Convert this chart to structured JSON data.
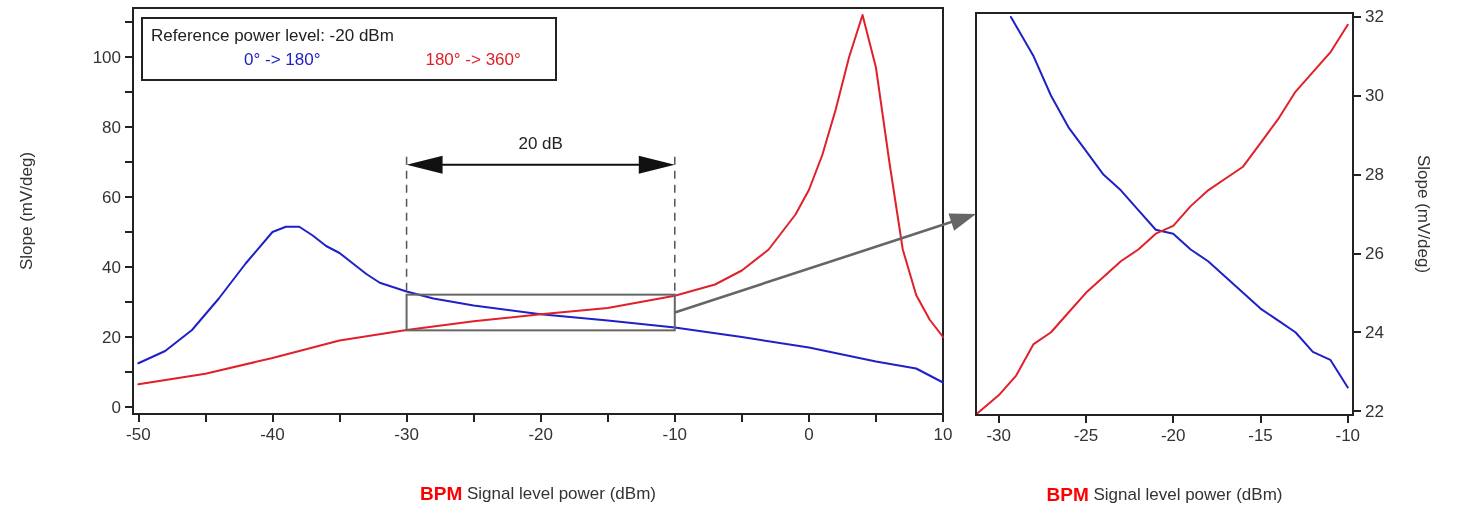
{
  "chart_data": [
    {
      "type": "line",
      "xlabel": "BPM Signal level power (dBm)",
      "ylabel": "Slope (mV/deg)",
      "legend_title": "Reference power level: -20 dBm",
      "legend": "top left",
      "grid": false,
      "xlim": [
        -50.4,
        10
      ],
      "xticks": [
        -50,
        {
          "value": -45,
          "label": null
        },
        -40,
        {
          "value": -35,
          "label": null
        },
        -30,
        {
          "value": -25,
          "label": null
        },
        -20,
        {
          "value": -15,
          "label": null
        },
        -10,
        {
          "value": -5,
          "label": null
        },
        0,
        {
          "value": 5,
          "label": null
        },
        10
      ],
      "ylim": [
        -2,
        114
      ],
      "yticks": [
        0,
        {
          "value": 10,
          "label": null
        },
        20,
        {
          "value": 30,
          "label": null
        },
        40,
        {
          "value": 50,
          "label": null
        },
        60,
        {
          "value": 70,
          "label": null
        },
        80,
        {
          "value": 90,
          "label": null
        },
        100,
        {
          "value": 110,
          "label": null
        }
      ],
      "annotations": [
        "20 dB"
      ],
      "series": [
        {
          "name": "0° -> 180°",
          "color": "#2020c8",
          "x": [
            -50,
            -48,
            -46,
            -44,
            -42,
            -40,
            -39,
            -38,
            -37,
            -36,
            -35,
            -34,
            -33,
            -32,
            -30,
            -28,
            -25,
            -20,
            -15,
            -10,
            -5,
            0,
            5,
            8,
            10
          ],
          "values": [
            12.5,
            16,
            22,
            31,
            41,
            50,
            51.5,
            51.5,
            49,
            46,
            44,
            41,
            38,
            35.5,
            33,
            31,
            29,
            26.5,
            24.7,
            22.7,
            20,
            17,
            13,
            11,
            7
          ]
        },
        {
          "name": "180° -> 360°",
          "color": "#e0202a",
          "x": [
            -50,
            -45,
            -40,
            -35,
            -30,
            -25,
            -20,
            -15,
            -10,
            -7,
            -5,
            -3,
            -1,
            0,
            1,
            2,
            3,
            4,
            5,
            6,
            7,
            8,
            9,
            10
          ],
          "values": [
            6.5,
            9.5,
            14,
            19,
            22,
            24.5,
            26.5,
            28.3,
            31.8,
            35,
            39,
            45,
            55,
            62,
            72,
            85,
            100,
            112,
            97,
            70,
            45,
            32,
            25,
            20
          ]
        }
      ]
    },
    {
      "type": "line",
      "xlabel": "BPM Signal level power (dBm)",
      "y2label": "Slope (mV/deg)",
      "grid": false,
      "xlim": [
        -31.3,
        -9.7
      ],
      "xticks": [
        -30,
        -25,
        -20,
        -15,
        -10
      ],
      "y2lim": [
        21.9,
        32.1
      ],
      "y2ticks": [
        22,
        24,
        26,
        28,
        30,
        32
      ],
      "series": [
        {
          "color": "#2020c8",
          "axis": "y2",
          "x": [
            -29.3,
            -28,
            -27,
            -26,
            -25,
            -24,
            -23,
            -22,
            -21,
            -20,
            -19,
            -18,
            -17,
            -16,
            -15,
            -14,
            -13,
            -12,
            -11,
            -10
          ],
          "values": [
            32,
            31,
            30,
            29.2,
            28.6,
            28,
            27.6,
            27.1,
            26.6,
            26.5,
            26.1,
            25.8,
            25.4,
            25,
            24.6,
            24.3,
            24,
            23.5,
            23.3,
            22.6
          ]
        },
        {
          "color": "#e0202a",
          "axis": "y2",
          "x": [
            -31.2,
            -30,
            -29,
            -28,
            -27,
            -26,
            -25,
            -24,
            -23,
            -22,
            -21,
            -20,
            -19,
            -18,
            -17,
            -16,
            -15,
            -14,
            -13,
            -12,
            -11,
            -10
          ],
          "values": [
            21.95,
            22.4,
            22.9,
            23.7,
            24,
            24.5,
            25,
            25.4,
            25.8,
            26.1,
            26.5,
            26.7,
            27.2,
            27.6,
            27.9,
            28.2,
            28.8,
            29.4,
            30.1,
            30.6,
            31.1,
            31.8
          ]
        }
      ]
    }
  ]
}
